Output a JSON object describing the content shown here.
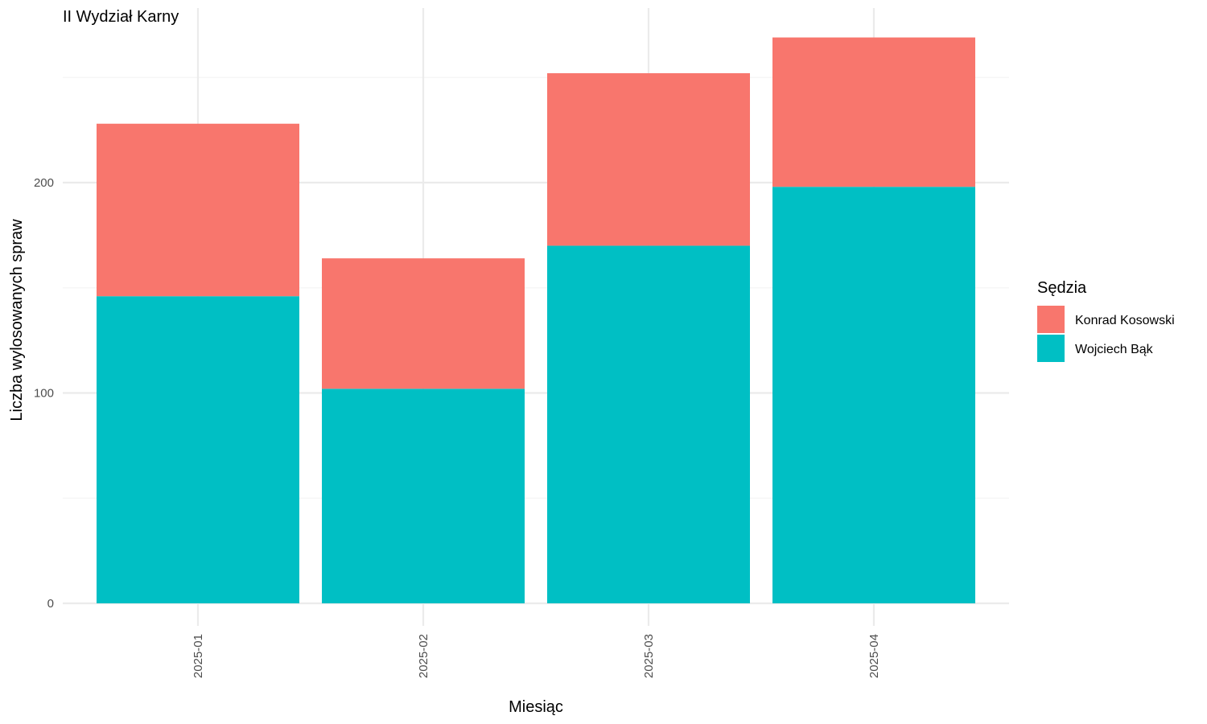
{
  "chart_data": {
    "type": "bar",
    "stacked": true,
    "title": "II Wydział Karny",
    "xlabel": "Miesiąc",
    "ylabel": "Liczba wylosowanych spraw",
    "categories": [
      "2025-01",
      "2025-02",
      "2025-03",
      "2025-04"
    ],
    "series": [
      {
        "name": "Wojciech Bąk",
        "color": "#00BFC4",
        "values": [
          146,
          102,
          170,
          198
        ]
      },
      {
        "name": "Konrad Kosowski",
        "color": "#F8766D",
        "values": [
          82,
          62,
          82,
          71
        ]
      }
    ],
    "ylim": [
      0,
      270
    ],
    "yticks": [
      0,
      100,
      200
    ],
    "grid": true,
    "legend": {
      "title": "Sędzia",
      "position": "right",
      "entries": [
        {
          "label": "Konrad Kosowski",
          "color": "#F8766D"
        },
        {
          "label": "Wojciech Bąk",
          "color": "#00BFC4"
        }
      ]
    }
  }
}
